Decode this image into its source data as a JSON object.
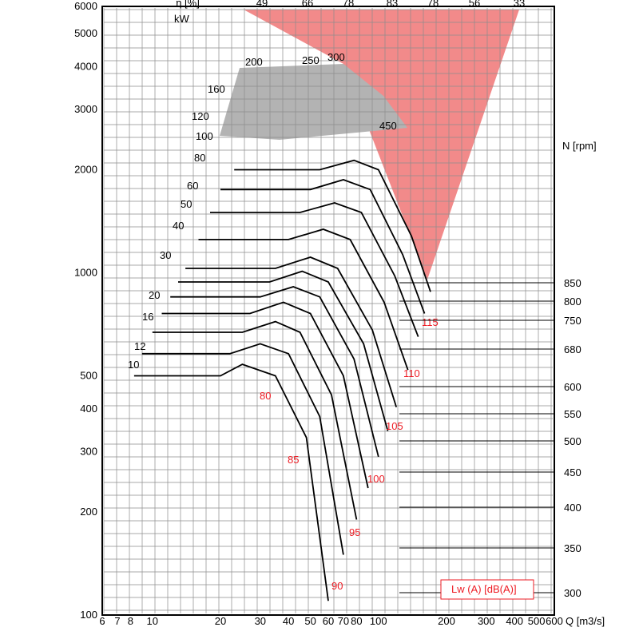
{
  "chart_data": {
    "type": "line",
    "title": "",
    "xlabel": "Q [m3/s]",
    "ylabel": "",
    "x_scale": "log",
    "y_scale": "log",
    "xlim": [
      6,
      600
    ],
    "ylim": [
      100,
      6000
    ],
    "x_ticks": [
      6,
      7,
      8,
      10,
      20,
      30,
      40,
      50,
      60,
      70,
      80,
      100,
      200,
      300,
      400,
      500,
      600
    ],
    "y_ticks": [
      100,
      200,
      300,
      400,
      500,
      1000,
      2000,
      3000,
      4000,
      5000,
      6000
    ],
    "unit_kw": "kW",
    "top_axis_labels": [
      "η [%]",
      "49",
      "66",
      "78",
      "83",
      "78",
      "56",
      "33"
    ],
    "rpm_axis_label": "N [rpm]",
    "rpm_ticks": [
      850,
      800,
      750,
      680,
      600,
      550,
      500,
      450,
      400,
      350,
      300
    ],
    "power_labels": [
      "10",
      "12",
      "16",
      "20",
      "30",
      "40",
      "50",
      "60",
      "80",
      "100",
      "120",
      "160",
      "200",
      "250",
      "300",
      "450"
    ],
    "sound_labels": [
      "80",
      "85",
      "90",
      "95",
      "100",
      "105",
      "110",
      "115"
    ],
    "legend": "Lw (A) [dB(A)]",
    "colors": {
      "grid": "#8c8c8c",
      "curve": "#000000",
      "sound": "#ee1c24",
      "region_red": "#f28a8a",
      "region_grey": "#b3b3b3"
    },
    "rpm_curves": [
      {
        "rpm": 300,
        "points": [
          [
            8.3,
            500
          ],
          [
            20,
            500
          ],
          [
            25,
            540
          ],
          [
            35,
            500
          ],
          [
            48,
            330
          ],
          [
            60,
            110
          ]
        ]
      },
      {
        "rpm": 350,
        "points": [
          [
            9,
            580
          ],
          [
            22,
            580
          ],
          [
            30,
            620
          ],
          [
            40,
            580
          ],
          [
            55,
            380
          ],
          [
            70,
            150
          ]
        ]
      },
      {
        "rpm": 400,
        "points": [
          [
            10,
            670
          ],
          [
            25,
            670
          ],
          [
            35,
            720
          ],
          [
            45,
            670
          ],
          [
            62,
            440
          ],
          [
            80,
            190
          ]
        ]
      },
      {
        "rpm": 450,
        "points": [
          [
            11,
            760
          ],
          [
            27,
            760
          ],
          [
            38,
            820
          ],
          [
            50,
            760
          ],
          [
            70,
            500
          ],
          [
            90,
            235
          ]
        ]
      },
      {
        "rpm": 500,
        "points": [
          [
            12,
            850
          ],
          [
            30,
            850
          ],
          [
            42,
            910
          ],
          [
            55,
            850
          ],
          [
            78,
            560
          ],
          [
            100,
            290
          ]
        ]
      },
      {
        "rpm": 550,
        "points": [
          [
            13,
            940
          ],
          [
            33,
            940
          ],
          [
            46,
            1010
          ],
          [
            60,
            940
          ],
          [
            86,
            620
          ],
          [
            110,
            345
          ]
        ]
      },
      {
        "rpm": 600,
        "points": [
          [
            14,
            1030
          ],
          [
            35,
            1030
          ],
          [
            50,
            1110
          ],
          [
            66,
            1030
          ],
          [
            94,
            680
          ],
          [
            120,
            405
          ]
        ]
      },
      {
        "rpm": 680,
        "points": [
          [
            16,
            1250
          ],
          [
            40,
            1250
          ],
          [
            57,
            1340
          ],
          [
            75,
            1250
          ],
          [
            106,
            820
          ],
          [
            135,
            520
          ]
        ]
      },
      {
        "rpm": 750,
        "points": [
          [
            18,
            1500
          ],
          [
            45,
            1500
          ],
          [
            64,
            1600
          ],
          [
            84,
            1500
          ],
          [
            118,
            980
          ],
          [
            150,
            650
          ]
        ]
      },
      {
        "rpm": 800,
        "points": [
          [
            20,
            1750
          ],
          [
            50,
            1750
          ],
          [
            70,
            1870
          ],
          [
            92,
            1750
          ],
          [
            128,
            1130
          ],
          [
            160,
            760
          ]
        ]
      },
      {
        "rpm": 850,
        "points": [
          [
            23,
            2000
          ],
          [
            55,
            2000
          ],
          [
            78,
            2130
          ],
          [
            100,
            2000
          ],
          [
            140,
            1280
          ],
          [
            170,
            880
          ]
        ]
      }
    ]
  }
}
